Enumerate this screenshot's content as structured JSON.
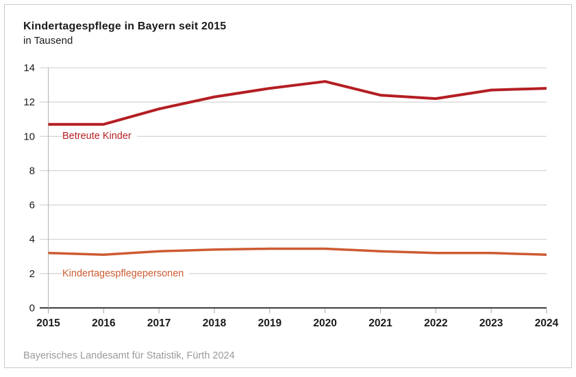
{
  "chart_data": {
    "type": "line",
    "title": "Kindertagespflege in Bayern seit 2015",
    "subtitle_unit": "in Tausend",
    "source": "Bayerisches Landesamt für Statistik, Fürth 2024",
    "categories": [
      "2015",
      "2016",
      "2017",
      "2018",
      "2019",
      "2020",
      "2021",
      "2022",
      "2023",
      "2024"
    ],
    "series": [
      {
        "name": "Betreute Kinder",
        "color": "#b41e23",
        "values": [
          10.7,
          10.7,
          11.6,
          12.3,
          12.8,
          13.2,
          12.4,
          12.2,
          12.7,
          12.8
        ]
      },
      {
        "name": "Kindertagespflegepersonen",
        "color": "#cd5a32",
        "values": [
          3.2,
          3.1,
          3.3,
          3.4,
          3.45,
          3.45,
          3.3,
          3.2,
          3.2,
          3.1
        ]
      }
    ],
    "xlabel": "",
    "ylabel": "in Tausend",
    "ylim": [
      0,
      14
    ],
    "yticks": [
      0,
      2,
      4,
      6,
      8,
      10,
      12,
      14
    ],
    "grid": true,
    "legend_position": "inline-series-labels"
  },
  "colors": {
    "grid": "#c8c8c8",
    "axis_zero": "#3d3d3d",
    "axis_vertical": "#b3b3b3",
    "tick_mark": "#a6a6a6",
    "tick_text": "#1a1a1a",
    "source_text": "#9a9a9a",
    "frame_border": "#c9c9c9"
  }
}
